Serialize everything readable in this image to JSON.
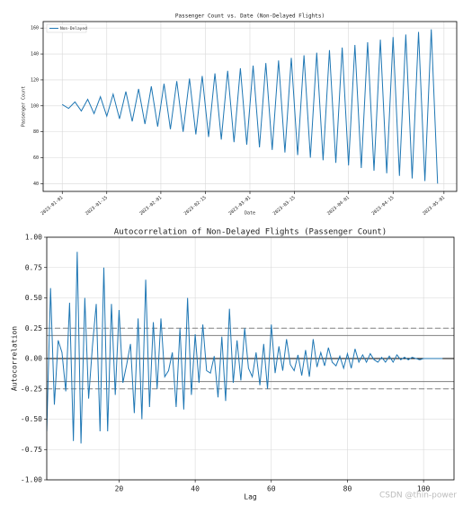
{
  "chart_data": [
    {
      "type": "line",
      "title": "Passenger Count vs. Date (Non-Delayed Flights)",
      "xlabel": "Date",
      "ylabel": "Passenger Count",
      "x": [
        "2023-01-01",
        "2023-01-03",
        "2023-01-05",
        "2023-01-07",
        "2023-01-09",
        "2023-01-11",
        "2023-01-13",
        "2023-01-15",
        "2023-01-17",
        "2023-01-19",
        "2023-01-21",
        "2023-01-23",
        "2023-01-25",
        "2023-01-27",
        "2023-01-29",
        "2023-01-31",
        "2023-02-02",
        "2023-02-04",
        "2023-02-06",
        "2023-02-08",
        "2023-02-10",
        "2023-02-12",
        "2023-02-14",
        "2023-02-16",
        "2023-02-18",
        "2023-02-20",
        "2023-02-22",
        "2023-02-24",
        "2023-02-26",
        "2023-02-28",
        "2023-03-02",
        "2023-03-04",
        "2023-03-06",
        "2023-03-08",
        "2023-03-10",
        "2023-03-12",
        "2023-03-14",
        "2023-03-16",
        "2023-03-18",
        "2023-03-20",
        "2023-03-22",
        "2023-03-24",
        "2023-03-26",
        "2023-03-28",
        "2023-03-30",
        "2023-04-01",
        "2023-04-03",
        "2023-04-05",
        "2023-04-07",
        "2023-04-09",
        "2023-04-11",
        "2023-04-13",
        "2023-04-15",
        "2023-04-17",
        "2023-04-19",
        "2023-04-21",
        "2023-04-23",
        "2023-04-25",
        "2023-04-27",
        "2023-04-29"
      ],
      "series": [
        {
          "name": "Non-Delayed",
          "color": "#1f77b4",
          "values": [
            101,
            98,
            103,
            96,
            105,
            94,
            107,
            92,
            109,
            90,
            111,
            88,
            113,
            86,
            115,
            84,
            117,
            82,
            119,
            80,
            121,
            78,
            123,
            76,
            125,
            74,
            127,
            72,
            129,
            70,
            131,
            68,
            133,
            66,
            135,
            64,
            137,
            62,
            139,
            60,
            141,
            58,
            143,
            56,
            145,
            54,
            147,
            52,
            149,
            50,
            151,
            48,
            153,
            46,
            155,
            44,
            157,
            42,
            159,
            40
          ]
        }
      ],
      "xlim": [
        "2022-12-26",
        "2023-05-05"
      ],
      "xticks": [
        "2023-01-01",
        "2023-01-15",
        "2023-02-01",
        "2023-02-15",
        "2023-03-01",
        "2023-03-15",
        "2023-04-01",
        "2023-04-15",
        "2023-05-01"
      ],
      "ylim": [
        34,
        165
      ],
      "yticks": [
        40,
        60,
        80,
        100,
        120,
        140,
        160
      ],
      "grid": true,
      "legend": "upper left"
    },
    {
      "type": "line",
      "title": "Autocorrelation of Non-Delayed Flights (Passenger Count)",
      "xlabel": "Lag",
      "ylabel": "Autocorrelation",
      "color": "#1f77b4",
      "x": [
        1,
        2,
        3,
        4,
        5,
        6,
        7,
        8,
        9,
        10,
        11,
        12,
        13,
        14,
        15,
        16,
        17,
        18,
        19,
        20,
        21,
        22,
        23,
        24,
        25,
        26,
        27,
        28,
        29,
        30,
        31,
        32,
        33,
        34,
        35,
        36,
        37,
        38,
        39,
        40,
        41,
        42,
        43,
        44,
        45,
        46,
        47,
        48,
        49,
        50,
        51,
        52,
        53,
        54,
        55,
        56,
        57,
        58,
        59,
        60,
        61,
        62,
        63,
        64,
        65,
        66,
        67,
        68,
        69,
        70,
        71,
        72,
        73,
        74,
        75,
        76,
        77,
        78,
        79,
        80,
        81,
        82,
        83,
        84,
        85,
        86,
        87,
        88,
        89,
        90,
        91,
        92,
        93,
        94,
        95,
        96,
        97,
        98,
        99,
        100,
        101,
        102,
        103,
        104,
        105
      ],
      "values": [
        -0.6,
        0.58,
        -0.38,
        0.15,
        0.05,
        -0.27,
        0.46,
        -0.68,
        0.88,
        -0.7,
        0.5,
        -0.33,
        0.1,
        0.45,
        -0.6,
        0.75,
        -0.6,
        0.45,
        -0.3,
        0.4,
        -0.2,
        -0.05,
        0.12,
        -0.45,
        0.33,
        -0.5,
        0.65,
        -0.4,
        0.3,
        -0.25,
        0.33,
        -0.15,
        -0.1,
        0.05,
        -0.4,
        0.25,
        -0.42,
        0.5,
        -0.3,
        0.2,
        -0.2,
        0.28,
        -0.1,
        -0.12,
        0.02,
        -0.32,
        0.18,
        -0.35,
        0.41,
        -0.2,
        0.15,
        -0.18,
        0.25,
        -0.08,
        -0.15,
        0.05,
        -0.22,
        0.12,
        -0.25,
        0.28,
        -0.12,
        0.1,
        -0.1,
        0.16,
        -0.05,
        -0.1,
        0.03,
        -0.14,
        0.07,
        -0.15,
        0.16,
        -0.07,
        0.05,
        -0.06,
        0.09,
        -0.03,
        -0.06,
        0.02,
        -0.08,
        0.04,
        -0.08,
        0.08,
        -0.03,
        0.03,
        -0.03,
        0.04,
        -0.01,
        -0.03,
        0.01,
        -0.03,
        0.02,
        -0.03,
        0.03,
        -0.01,
        0.01,
        -0.01,
        0.01,
        0,
        -0.01,
        0,
        0,
        0,
        0,
        0,
        0
      ],
      "xlim": [
        1,
        108
      ],
      "xticks": [
        20,
        40,
        60,
        80,
        100
      ],
      "ylim": [
        -1,
        1
      ],
      "yticks": [
        {
          "value": -1,
          "label": "-1.00"
        },
        {
          "value": -0.75,
          "label": "-0.75"
        },
        {
          "value": -0.5,
          "label": "-0.50"
        },
        {
          "value": -0.25,
          "label": "-0.25"
        },
        {
          "value": 0,
          "label": "0.00"
        },
        {
          "value": 0.25,
          "label": "0.25"
        },
        {
          "value": 0.5,
          "label": "0.50"
        },
        {
          "value": 0.75,
          "label": "0.75"
        },
        {
          "value": 1,
          "label": "1.00"
        }
      ],
      "grid": true,
      "hlines": [
        {
          "value": 0.25,
          "dashed": true,
          "color": "#808080"
        },
        {
          "value": 0.19,
          "dashed": false,
          "color": "#808080"
        },
        {
          "value": 0,
          "dashed": false,
          "color": "#000000"
        },
        {
          "value": -0.19,
          "dashed": false,
          "color": "#808080"
        },
        {
          "value": -0.25,
          "dashed": true,
          "color": "#808080"
        }
      ]
    }
  ],
  "watermark": "CSDN @thin-power"
}
